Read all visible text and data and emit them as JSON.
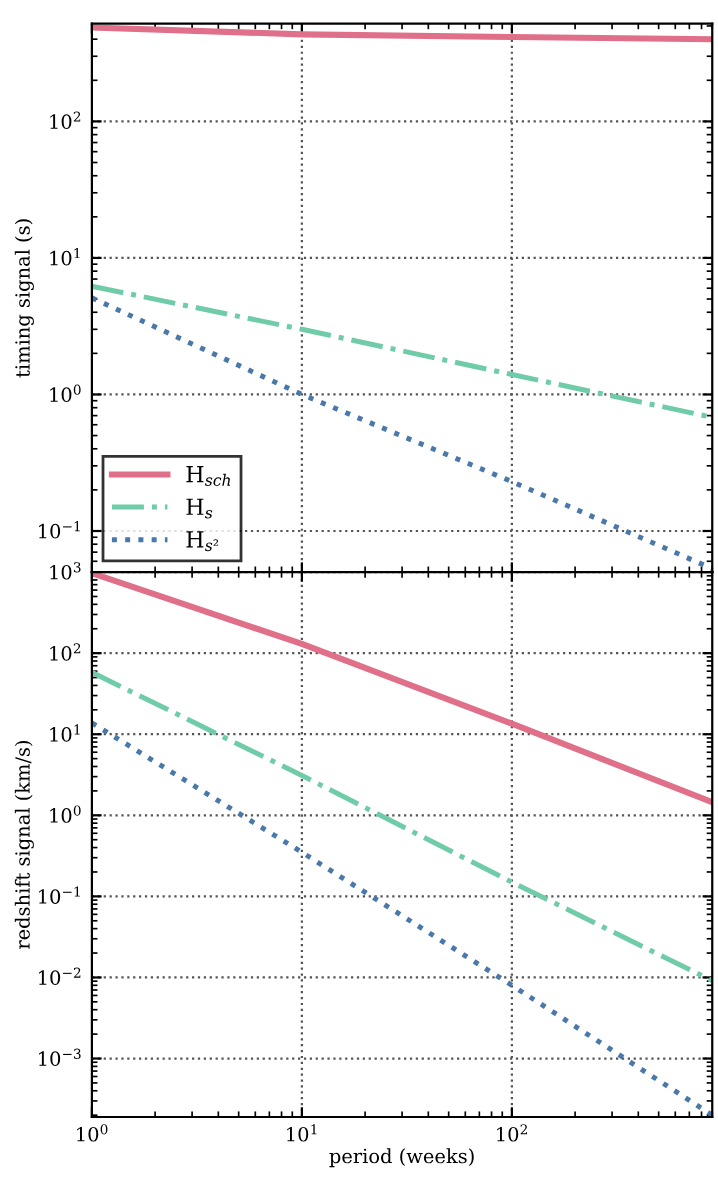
{
  "chart_data": [
    {
      "type": "line",
      "ylabel": "timing signal (s)",
      "log": "xy",
      "grid": true,
      "legend": "bottom left",
      "tick_labels": "y",
      "xlim": [
        1,
        900
      ],
      "xticks": [
        {
          "value": 1,
          "label": null
        },
        {
          "value": 10,
          "label": null
        },
        {
          "value": 100,
          "label": null
        }
      ],
      "ylim": [
        0.05,
        520
      ],
      "yticks": [
        {
          "value": 0.1,
          "label": "10$^{−1}$"
        },
        {
          "value": 1,
          "label": "10$^{0}$"
        },
        {
          "value": 10,
          "label": "10$^{1}$"
        },
        {
          "value": 100,
          "label": "10$^{2}$"
        }
      ],
      "x": [
        1,
        10,
        100,
        900
      ],
      "series": [
        {
          "name": "H$_{sch}$",
          "color": "#e0708a",
          "line_style": "solid",
          "values": [
            487,
            434,
            415,
            400
          ]
        },
        {
          "name": "H$_{s}$",
          "color": "#70cca8",
          "line_style": "dashdot",
          "values": [
            6.2,
            3.0,
            1.4,
            0.68
          ]
        },
        {
          "name": "H$_{s²}$",
          "color": "#4a78a8",
          "line_style": "dotted",
          "values": [
            5.1,
            1.0,
            0.23,
            0.053
          ]
        }
      ]
    },
    {
      "type": "line",
      "xlabel": "period (weeks)",
      "ylabel": "redshift signal (km/s)",
      "log": "xy",
      "grid": true,
      "xlim": [
        1,
        900
      ],
      "xticks": [
        {
          "value": 1,
          "label": "10$^{0}$"
        },
        {
          "value": 10,
          "label": "10$^{1}$"
        },
        {
          "value": 100,
          "label": "10$^{2}$"
        }
      ],
      "ylim": [
        0.00019,
        1000
      ],
      "yticks": [
        {
          "value": 0.001,
          "label": "10$^{−3}$"
        },
        {
          "value": 0.01,
          "label": "10$^{−2}$"
        },
        {
          "value": 0.1,
          "label": "10$^{−1}$"
        },
        {
          "value": 1,
          "label": "10$^{0}$"
        },
        {
          "value": 10,
          "label": "10$^{1}$"
        },
        {
          "value": 100,
          "label": "10$^{2}$"
        },
        {
          "value": 1000,
          "label": "10$^{3}$"
        }
      ],
      "x": [
        1,
        10,
        100,
        900
      ],
      "series": [
        {
          "color": "#e0708a",
          "line_style": "solid",
          "values": [
            970,
            130,
            13.5,
            1.45
          ]
        },
        {
          "color": "#70cca8",
          "line_style": "dashdot",
          "values": [
            58,
            3.1,
            0.15,
            0.0091
          ]
        },
        {
          "color": "#4a78a8",
          "line_style": "dotted",
          "values": [
            13.8,
            0.35,
            0.008,
            0.0002
          ]
        }
      ]
    }
  ]
}
